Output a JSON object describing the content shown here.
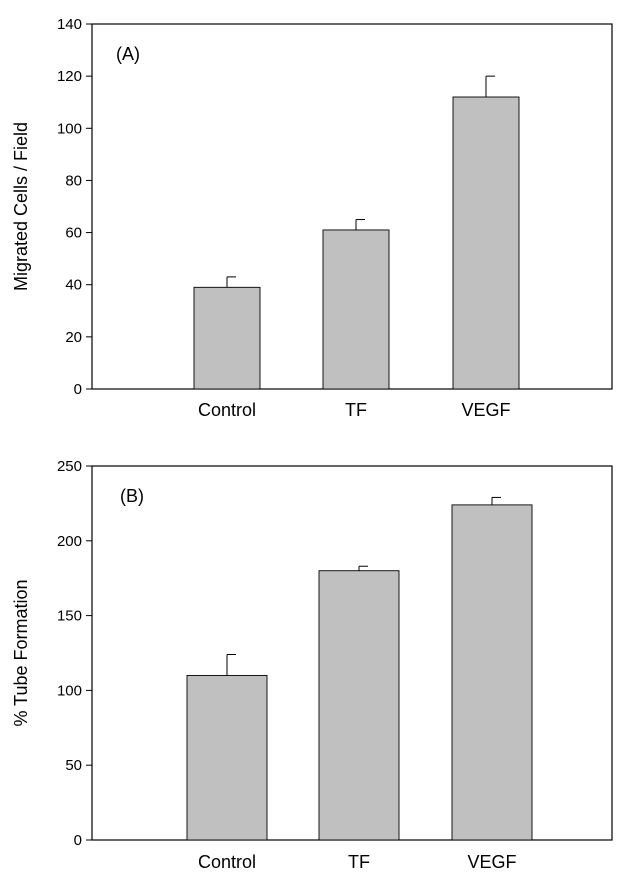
{
  "chart_data": [
    {
      "type": "bar",
      "panel_label": "(A)",
      "categories": [
        "Control",
        "TF",
        "VEGF"
      ],
      "values": [
        39,
        61,
        112
      ],
      "errors": [
        4,
        4,
        8
      ],
      "ylabel": "Migrated Cells / Field",
      "ylim": [
        0,
        140
      ],
      "yticks": [
        0,
        20,
        40,
        60,
        80,
        100,
        120,
        140
      ],
      "bar_color": "#c0c0c0",
      "grid": false
    },
    {
      "type": "bar",
      "panel_label": "(B)",
      "categories": [
        "Control",
        "TF",
        "VEGF"
      ],
      "values": [
        110,
        180,
        224
      ],
      "errors": [
        14,
        3,
        5
      ],
      "ylabel": "% Tube Formation",
      "ylim": [
        0,
        250
      ],
      "yticks": [
        0,
        50,
        100,
        150,
        200,
        250
      ],
      "bar_color": "#c0c0c0",
      "grid": false
    }
  ]
}
